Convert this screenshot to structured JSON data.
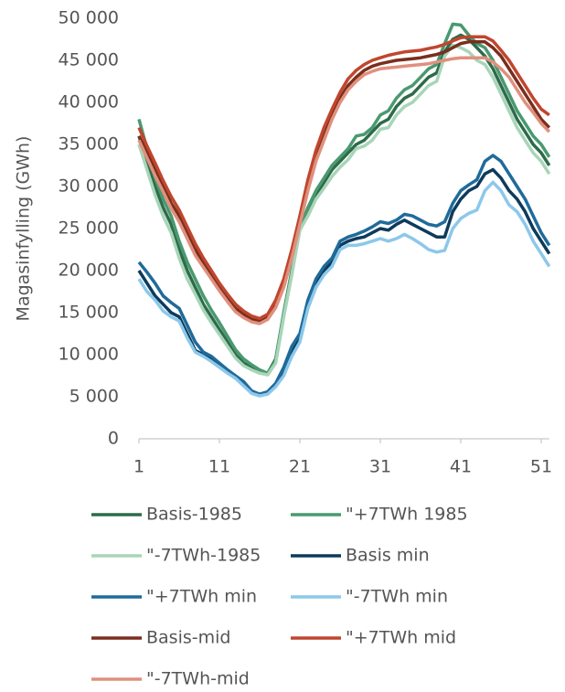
{
  "chart_data": {
    "type": "line",
    "y_label": "Magasinfylling (GWh)",
    "x": [
      1,
      2,
      3,
      4,
      5,
      6,
      7,
      8,
      9,
      10,
      11,
      12,
      13,
      14,
      15,
      16,
      17,
      18,
      19,
      20,
      21,
      22,
      23,
      24,
      25,
      26,
      27,
      28,
      29,
      30,
      31,
      32,
      33,
      34,
      35,
      36,
      37,
      38,
      39,
      40,
      41,
      42,
      43,
      44,
      45,
      46,
      47,
      48,
      49,
      50,
      51,
      52
    ],
    "xlim": [
      1,
      52
    ],
    "xticks": [
      1,
      11,
      21,
      31,
      41,
      51
    ],
    "ylim": [
      0,
      50000
    ],
    "yticks": [
      0,
      {
        "value": 5000,
        "label": "5 000"
      },
      {
        "value": 10000,
        "label": "10 000"
      },
      {
        "value": 15000,
        "label": "15 000"
      },
      {
        "value": 20000,
        "label": "20 000"
      },
      {
        "value": 25000,
        "label": "25 000"
      },
      {
        "value": 30000,
        "label": "30 000"
      },
      {
        "value": 35000,
        "label": "35 000"
      },
      {
        "value": 40000,
        "label": "40 000"
      },
      {
        "value": 45000,
        "label": "45 000"
      },
      {
        "value": 50000,
        "label": "50 000"
      }
    ],
    "grid": false,
    "series": [
      {
        "name": "Basis-1985",
        "color": "#2e6b4a",
        "values": [
          36000,
          33000,
          30000,
          27500,
          25500,
          22500,
          20000,
          18000,
          16000,
          14500,
          13000,
          11500,
          10000,
          9000,
          8500,
          8000,
          7800,
          9500,
          15000,
          20000,
          25000,
          27000,
          29000,
          30500,
          32000,
          33000,
          34000,
          35000,
          35500,
          36500,
          37500,
          38000,
          39500,
          40500,
          41000,
          42000,
          43000,
          43500,
          46000,
          47500,
          48000,
          47500,
          46500,
          45500,
          44000,
          42000,
          40000,
          38000,
          36500,
          35000,
          34000,
          32500
        ]
      },
      {
        "name": "\"+7TWh 1985",
        "color": "#4a9970",
        "values": [
          38000,
          34500,
          31000,
          28500,
          26500,
          23500,
          21000,
          19000,
          17000,
          15300,
          13800,
          12200,
          10600,
          9500,
          8800,
          8200,
          7800,
          9300,
          15000,
          20000,
          25000,
          27500,
          29500,
          31000,
          32500,
          33500,
          34500,
          36000,
          36200,
          37000,
          38500,
          39000,
          40500,
          41500,
          42000,
          43000,
          44000,
          44500,
          47000,
          49300,
          49200,
          48000,
          47000,
          46500,
          45000,
          43000,
          41000,
          39000,
          37500,
          36000,
          35000,
          33500
        ]
      },
      {
        "name": "\"-7TWh-1985",
        "color": "#a8d5b8",
        "values": [
          35000,
          32000,
          29000,
          26500,
          24500,
          21500,
          19000,
          17200,
          15300,
          13800,
          12400,
          11000,
          9600,
          8700,
          8200,
          7800,
          7600,
          9000,
          14500,
          19500,
          24800,
          26500,
          28500,
          29800,
          31200,
          32300,
          33200,
          34500,
          34800,
          35500,
          36800,
          37000,
          38500,
          39500,
          40000,
          41000,
          42000,
          42500,
          45500,
          46800,
          46500,
          46000,
          45000,
          44500,
          43000,
          41000,
          39000,
          37000,
          35500,
          34000,
          33000,
          31500
        ]
      },
      {
        "name": "Basis min",
        "color": "#0d3b5c",
        "values": [
          20000,
          18500,
          17000,
          16000,
          15000,
          14500,
          12500,
          10500,
          10000,
          9500,
          8800,
          8000,
          7300,
          6500,
          5500,
          5200,
          5500,
          6500,
          8000,
          10500,
          12000,
          16000,
          18500,
          20000,
          21000,
          23000,
          23500,
          23800,
          24000,
          24500,
          25000,
          24800,
          25500,
          26000,
          25500,
          25000,
          24500,
          24000,
          24000,
          27000,
          28500,
          29500,
          30000,
          31500,
          32000,
          31000,
          29500,
          28500,
          27000,
          25000,
          23500,
          22000
        ]
      },
      {
        "name": "\"+7TWh min",
        "color": "#1f6b9a",
        "values": [
          21000,
          19800,
          18500,
          17000,
          16200,
          15500,
          13500,
          11500,
          10300,
          9800,
          9000,
          8200,
          7500,
          6800,
          5700,
          5300,
          5600,
          6600,
          8500,
          11000,
          12500,
          16500,
          19000,
          20500,
          21500,
          23500,
          24000,
          24300,
          24700,
          25200,
          25800,
          25600,
          26000,
          26700,
          26500,
          26000,
          25500,
          25300,
          25800,
          28000,
          29500,
          30200,
          30800,
          33000,
          33700,
          33000,
          31500,
          30000,
          28500,
          26500,
          24500,
          23000
        ]
      },
      {
        "name": "\"-7TWh min",
        "color": "#8cc8ea",
        "values": [
          19000,
          17500,
          16500,
          15200,
          14500,
          14000,
          12000,
          10300,
          9800,
          9200,
          8500,
          7800,
          7200,
          6300,
          5400,
          5100,
          5300,
          6200,
          7500,
          9800,
          11500,
          15500,
          18000,
          19500,
          20500,
          22500,
          23000,
          23000,
          23200,
          23500,
          23800,
          23500,
          23800,
          24300,
          23800,
          23200,
          22500,
          22200,
          22400,
          25000,
          26200,
          26800,
          27200,
          29500,
          30500,
          29500,
          27800,
          27000,
          25500,
          23500,
          22000,
          20500
        ]
      },
      {
        "name": "Basis-mid",
        "color": "#7a2e1e",
        "values": [
          36000,
          34000,
          32000,
          30000,
          28000,
          26500,
          24500,
          22500,
          21000,
          19500,
          18000,
          16800,
          15500,
          14800,
          14200,
          14000,
          14500,
          16000,
          18500,
          22000,
          26000,
          30000,
          33500,
          36000,
          38500,
          40500,
          42000,
          43000,
          43800,
          44300,
          44600,
          44800,
          45000,
          45100,
          45200,
          45300,
          45500,
          45700,
          46000,
          46500,
          47000,
          47200,
          47200,
          47200,
          46500,
          45500,
          44000,
          42500,
          41000,
          39500,
          38000,
          37000
        ]
      },
      {
        "name": "\"+7TWh mid",
        "color": "#c0462e",
        "values": [
          37000,
          34800,
          32800,
          30700,
          28800,
          27200,
          25200,
          23200,
          21500,
          20000,
          18500,
          17200,
          16000,
          15200,
          14600,
          14300,
          14800,
          16500,
          19000,
          22500,
          26500,
          30800,
          34300,
          37000,
          39200,
          41200,
          42800,
          43800,
          44500,
          45000,
          45300,
          45600,
          45800,
          46000,
          46100,
          46200,
          46400,
          46600,
          46900,
          47300,
          47700,
          47800,
          47800,
          47800,
          47300,
          46200,
          45000,
          43500,
          42000,
          40500,
          39200,
          38500
        ]
      },
      {
        "name": "\"-7TWh-mid",
        "color": "#e0907e",
        "values": [
          35500,
          33400,
          31300,
          29400,
          27400,
          25800,
          23800,
          21800,
          20400,
          19000,
          17600,
          16300,
          15100,
          14400,
          13900,
          13700,
          14200,
          15600,
          18000,
          21500,
          25500,
          29500,
          33000,
          35500,
          38000,
          40000,
          41500,
          42500,
          43300,
          43700,
          44000,
          44100,
          44200,
          44300,
          44400,
          44500,
          44600,
          44800,
          45000,
          45200,
          45300,
          45300,
          45300,
          45300,
          44800,
          44000,
          43000,
          41500,
          40000,
          38800,
          37500,
          36500
        ]
      }
    ]
  }
}
